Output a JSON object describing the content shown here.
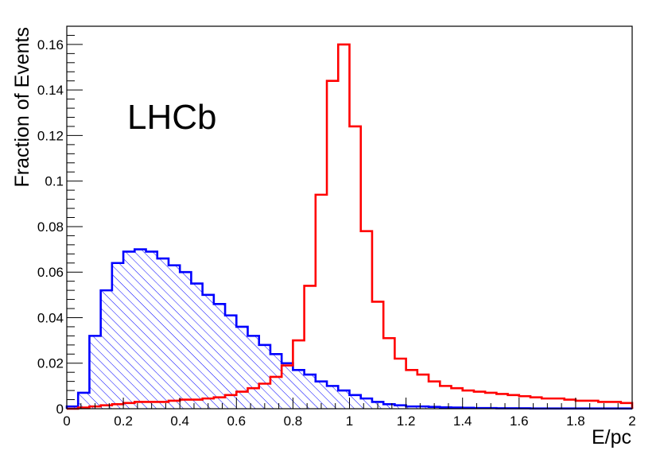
{
  "chart_data": {
    "type": "histogram",
    "xlabel": "E/pc",
    "ylabel": "Fraction of Events",
    "annotation": "LHCb",
    "xlim": [
      0,
      2
    ],
    "ylim": [
      0,
      0.168
    ],
    "bin_width": 0.04,
    "xticks": [
      0,
      0.2,
      0.4,
      0.6,
      0.8,
      1,
      1.2,
      1.4,
      1.6,
      1.8,
      2
    ],
    "xtick_labels": [
      "0",
      "0.2",
      "0.4",
      "0.6",
      "0.8",
      "1",
      "1.2",
      "1.4",
      "1.6",
      "1.8",
      "2"
    ],
    "yticks": [
      0,
      0.02,
      0.04,
      0.06,
      0.08,
      0.1,
      0.12,
      0.14,
      0.16
    ],
    "ytick_labels": [
      "0",
      "0.02",
      "0.04",
      "0.06",
      "0.08",
      "0.1",
      "0.12",
      "0.14",
      "0.16"
    ],
    "grid": false,
    "legend": "none",
    "series": [
      {
        "color": "#0000ff",
        "fill": "hatched",
        "values": [
          0.001,
          0.007,
          0.032,
          0.052,
          0.064,
          0.069,
          0.07,
          0.069,
          0.066,
          0.063,
          0.06,
          0.055,
          0.05,
          0.046,
          0.041,
          0.036,
          0.032,
          0.028,
          0.024,
          0.02,
          0.017,
          0.015,
          0.012,
          0.01,
          0.008,
          0.006,
          0.0045,
          0.003,
          0.002,
          0.0015,
          0.001,
          0.001,
          0.0008,
          0.0006,
          0.0005,
          0.0004,
          0.0003,
          0.0003,
          0.0002,
          0.0002,
          0.0002,
          0.0001,
          0.0001,
          0.0001,
          0.0001,
          0.0001,
          0.0001,
          0.0001,
          0.0001,
          0.0001
        ]
      },
      {
        "color": "#ff0000",
        "fill": "none",
        "values": [
          0.0,
          0.0005,
          0.001,
          0.0015,
          0.002,
          0.0025,
          0.003,
          0.003,
          0.003,
          0.0035,
          0.004,
          0.004,
          0.0045,
          0.005,
          0.006,
          0.0075,
          0.009,
          0.011,
          0.014,
          0.019,
          0.03,
          0.054,
          0.094,
          0.144,
          0.16,
          0.124,
          0.078,
          0.047,
          0.031,
          0.022,
          0.017,
          0.015,
          0.012,
          0.01,
          0.009,
          0.008,
          0.0075,
          0.007,
          0.0065,
          0.006,
          0.0055,
          0.005,
          0.0045,
          0.0045,
          0.004,
          0.0035,
          0.0035,
          0.003,
          0.003,
          0.0025
        ]
      }
    ]
  }
}
